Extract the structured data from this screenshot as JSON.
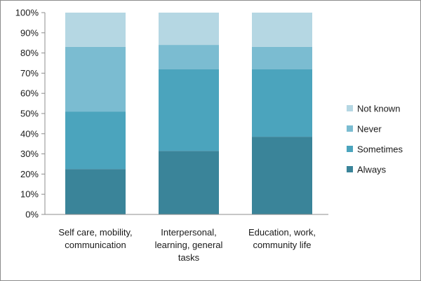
{
  "chart_data": {
    "type": "bar",
    "stacked": true,
    "percent": true,
    "categories": [
      [
        "Self care, mobility,",
        "communication"
      ],
      [
        "Interpersonal,",
        "learning, general",
        "tasks"
      ],
      [
        "Education, work,",
        "community life"
      ]
    ],
    "series": [
      {
        "name": "Always",
        "color": "#3a8499",
        "values": [
          22.5,
          31.5,
          38.5
        ]
      },
      {
        "name": "Sometimes",
        "color": "#4ba4bd",
        "values": [
          28.5,
          40.5,
          33.5
        ]
      },
      {
        "name": "Never",
        "color": "#7bbcd1",
        "values": [
          32,
          12,
          11
        ]
      },
      {
        "name": "Not known",
        "color": "#b5d7e3",
        "values": [
          17,
          16,
          17
        ]
      }
    ],
    "ylim": [
      0,
      100
    ],
    "y_ticks": [
      "0%",
      "10%",
      "20%",
      "30%",
      "40%",
      "50%",
      "60%",
      "70%",
      "80%",
      "90%",
      "100%"
    ],
    "title": "",
    "xlabel": "",
    "ylabel": "",
    "grid": false,
    "legend_position": "right"
  }
}
